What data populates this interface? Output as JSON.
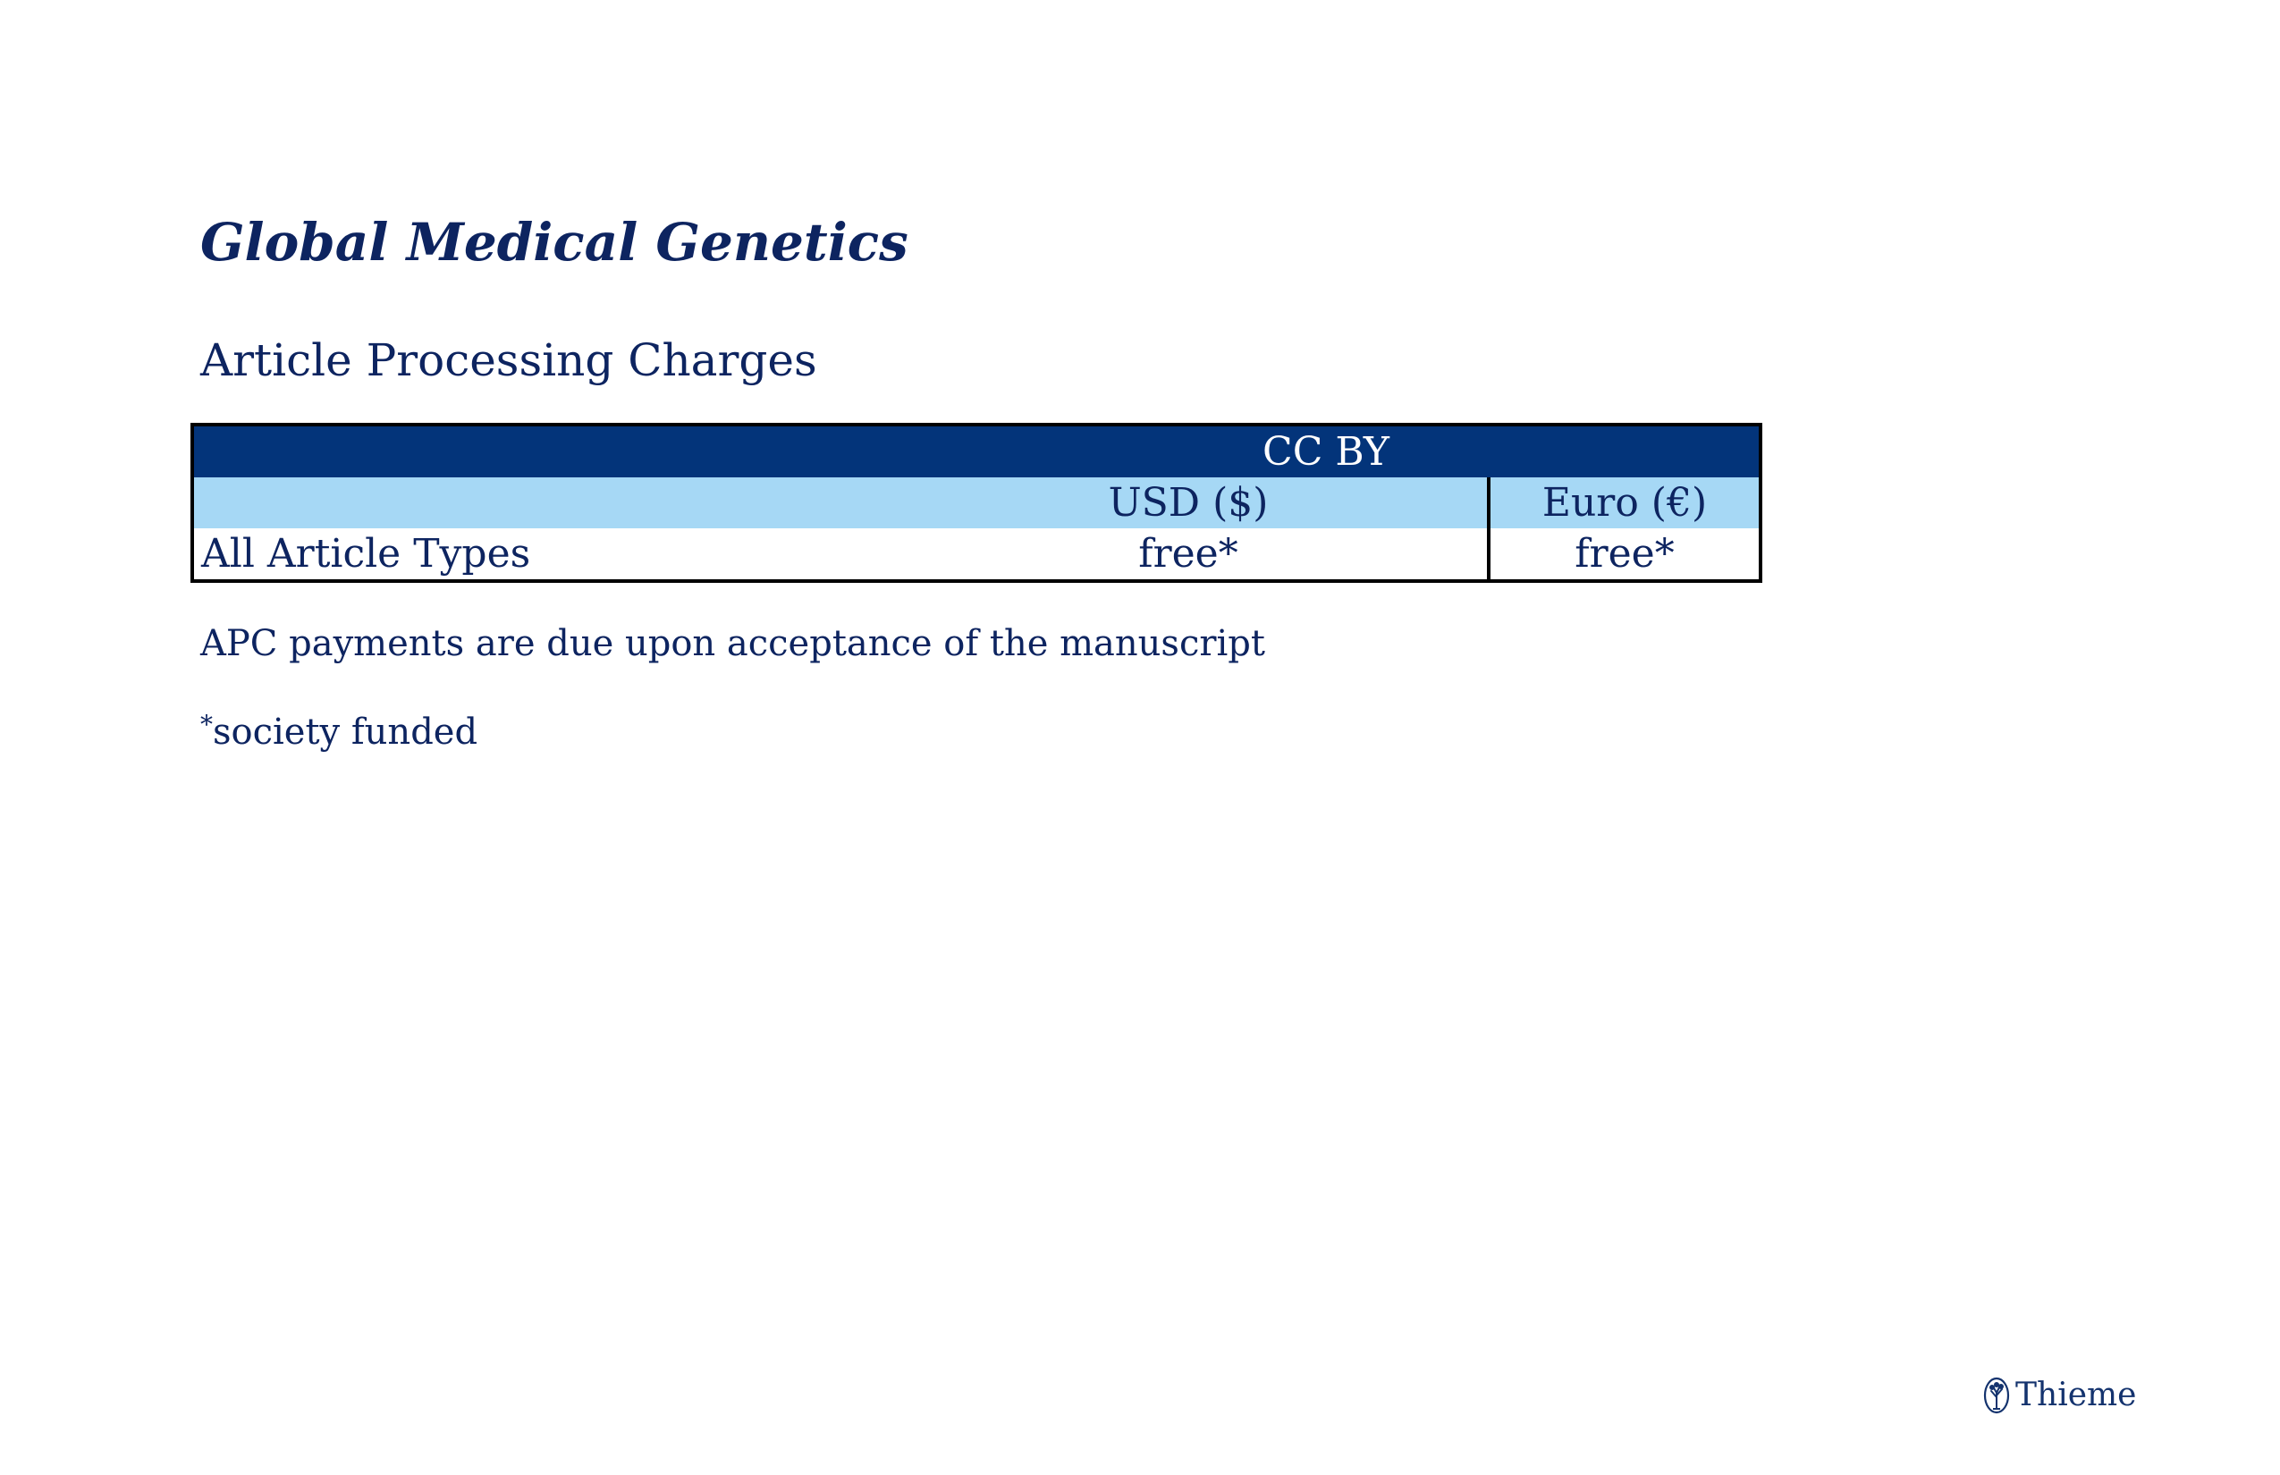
{
  "page": {
    "journal_title": "Global Medical Genetics",
    "section_title": "Article Processing Charges"
  },
  "apc_table": {
    "license": "CC BY",
    "currencies": [
      "USD ($)",
      "Euro (€)"
    ],
    "rows": [
      {
        "article_type": "All Article Types",
        "usd": "free*",
        "eur": "free*"
      }
    ]
  },
  "notes": {
    "payment_due": "APC payments are due upon acceptance of the manuscript",
    "funded_marker": "*",
    "funded_text": "society funded"
  },
  "publisher": {
    "name": "Thieme",
    "logo_icon": "tree-emblem-icon"
  },
  "colors": {
    "text": "#0d2460",
    "header_dark": "#03347a",
    "header_light": "#a6d8f5",
    "border": "#000000"
  }
}
